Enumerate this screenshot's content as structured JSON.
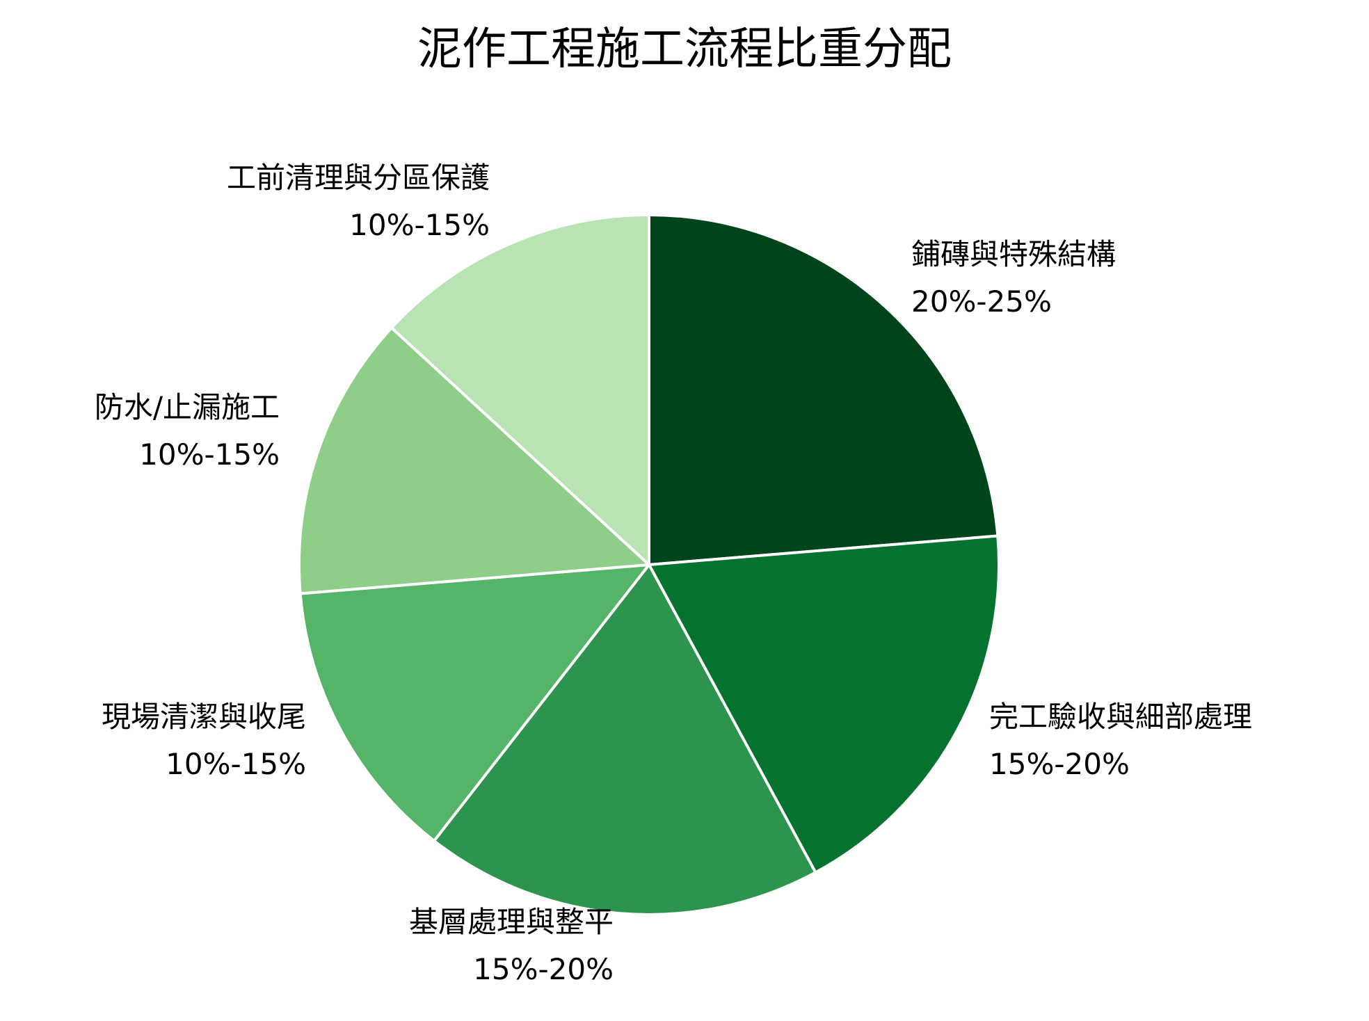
{
  "chart_data": {
    "type": "pie",
    "title": "泥作工程施工流程比重分配",
    "slices": [
      {
        "label": "鋪磚與特殊結構",
        "range": "20%-25%",
        "value": 22.5,
        "color": "#00441b"
      },
      {
        "label": "完工驗收與細部處理",
        "range": "15%-20%",
        "value": 17.5,
        "color": "#067230"
      },
      {
        "label": "基層處理與整平",
        "range": "15%-20%",
        "value": 17.5,
        "color": "#2c944c"
      },
      {
        "label": "現場清潔與收尾",
        "range": "10%-15%",
        "value": 12.5,
        "color": "#54b467"
      },
      {
        "label": "防水/止漏施工",
        "range": "10%-15%",
        "value": 12.5,
        "color": "#8ece88"
      },
      {
        "label": "工前清理與分區保護",
        "range": "10%-15%",
        "value": 12.5,
        "color": "#b8e3b2"
      }
    ],
    "start_angle": "12 o'clock",
    "direction": "clockwise",
    "slice_border_color": "#ffffff"
  }
}
